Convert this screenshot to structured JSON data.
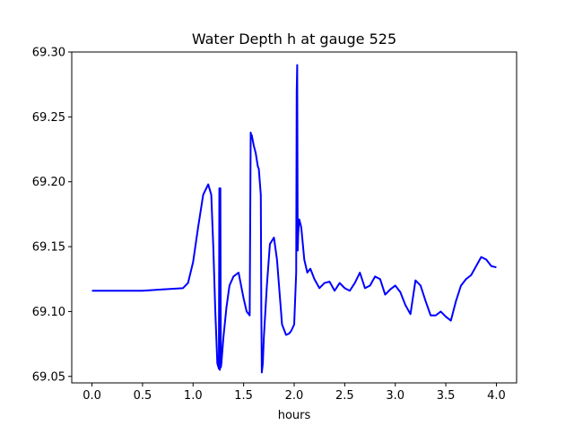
{
  "chart_data": {
    "type": "line",
    "title": "Water Depth h at gauge 525",
    "xlabel": "hours",
    "ylabel": "",
    "xlim": [
      -0.2,
      4.2
    ],
    "ylim": [
      69.045,
      69.3
    ],
    "xticks": [
      0.0,
      0.5,
      1.0,
      1.5,
      2.0,
      2.5,
      3.0,
      3.5,
      4.0
    ],
    "xtick_labels": [
      "0.0",
      "0.5",
      "1.0",
      "1.5",
      "2.0",
      "2.5",
      "3.0",
      "3.5",
      "4.0"
    ],
    "yticks": [
      69.05,
      69.1,
      69.15,
      69.2,
      69.25,
      69.3
    ],
    "ytick_labels": [
      "69.05",
      "69.10",
      "69.15",
      "69.20",
      "69.25",
      "69.30"
    ],
    "grid": false,
    "legend": "none",
    "series": [
      {
        "color": "#0000ff",
        "x": [
          0.0,
          0.3,
          0.5,
          0.7,
          0.9,
          0.95,
          1.0,
          1.05,
          1.1,
          1.15,
          1.18,
          1.2,
          1.22,
          1.24,
          1.255,
          1.26,
          1.265,
          1.27,
          1.275,
          1.28,
          1.3,
          1.33,
          1.36,
          1.4,
          1.45,
          1.5,
          1.53,
          1.56,
          1.57,
          1.575,
          1.58,
          1.6,
          1.62,
          1.64,
          1.65,
          1.66,
          1.67,
          1.675,
          1.68,
          1.69,
          1.7,
          1.73,
          1.76,
          1.8,
          1.83,
          1.86,
          1.88,
          1.92,
          1.95,
          1.97,
          2.0,
          2.02,
          2.025,
          2.03,
          2.035,
          2.04,
          2.05,
          2.07,
          2.1,
          2.13,
          2.16,
          2.2,
          2.25,
          2.3,
          2.35,
          2.4,
          2.45,
          2.5,
          2.55,
          2.6,
          2.65,
          2.7,
          2.75,
          2.8,
          2.85,
          2.9,
          2.95,
          3.0,
          3.05,
          3.1,
          3.15,
          3.2,
          3.25,
          3.3,
          3.35,
          3.4,
          3.45,
          3.5,
          3.55,
          3.6,
          3.65,
          3.7,
          3.75,
          3.8,
          3.85,
          3.9,
          3.95,
          4.0
        ],
        "y": [
          69.116,
          69.116,
          69.116,
          69.117,
          69.118,
          69.122,
          69.138,
          69.165,
          69.19,
          69.198,
          69.19,
          69.15,
          69.1,
          69.06,
          69.056,
          69.195,
          69.055,
          69.195,
          69.057,
          69.06,
          69.08,
          69.103,
          69.12,
          69.127,
          69.13,
          69.11,
          69.1,
          69.097,
          69.238,
          69.235,
          69.236,
          69.228,
          69.222,
          69.212,
          69.21,
          69.2,
          69.19,
          69.1,
          69.053,
          69.06,
          69.08,
          69.12,
          69.152,
          69.157,
          69.14,
          69.11,
          69.09,
          69.082,
          69.083,
          69.085,
          69.09,
          69.13,
          69.27,
          69.29,
          69.147,
          69.16,
          69.171,
          69.165,
          69.14,
          69.13,
          69.133,
          69.125,
          69.118,
          69.122,
          69.123,
          69.116,
          69.122,
          69.118,
          69.116,
          69.122,
          69.13,
          69.118,
          69.12,
          69.127,
          69.125,
          69.113,
          69.117,
          69.12,
          69.115,
          69.105,
          69.098,
          69.124,
          69.12,
          69.108,
          69.097,
          69.097,
          69.1,
          69.096,
          69.093,
          69.108,
          69.12,
          69.125,
          69.128,
          69.135,
          69.142,
          69.14,
          69.135,
          69.134
        ]
      }
    ]
  }
}
